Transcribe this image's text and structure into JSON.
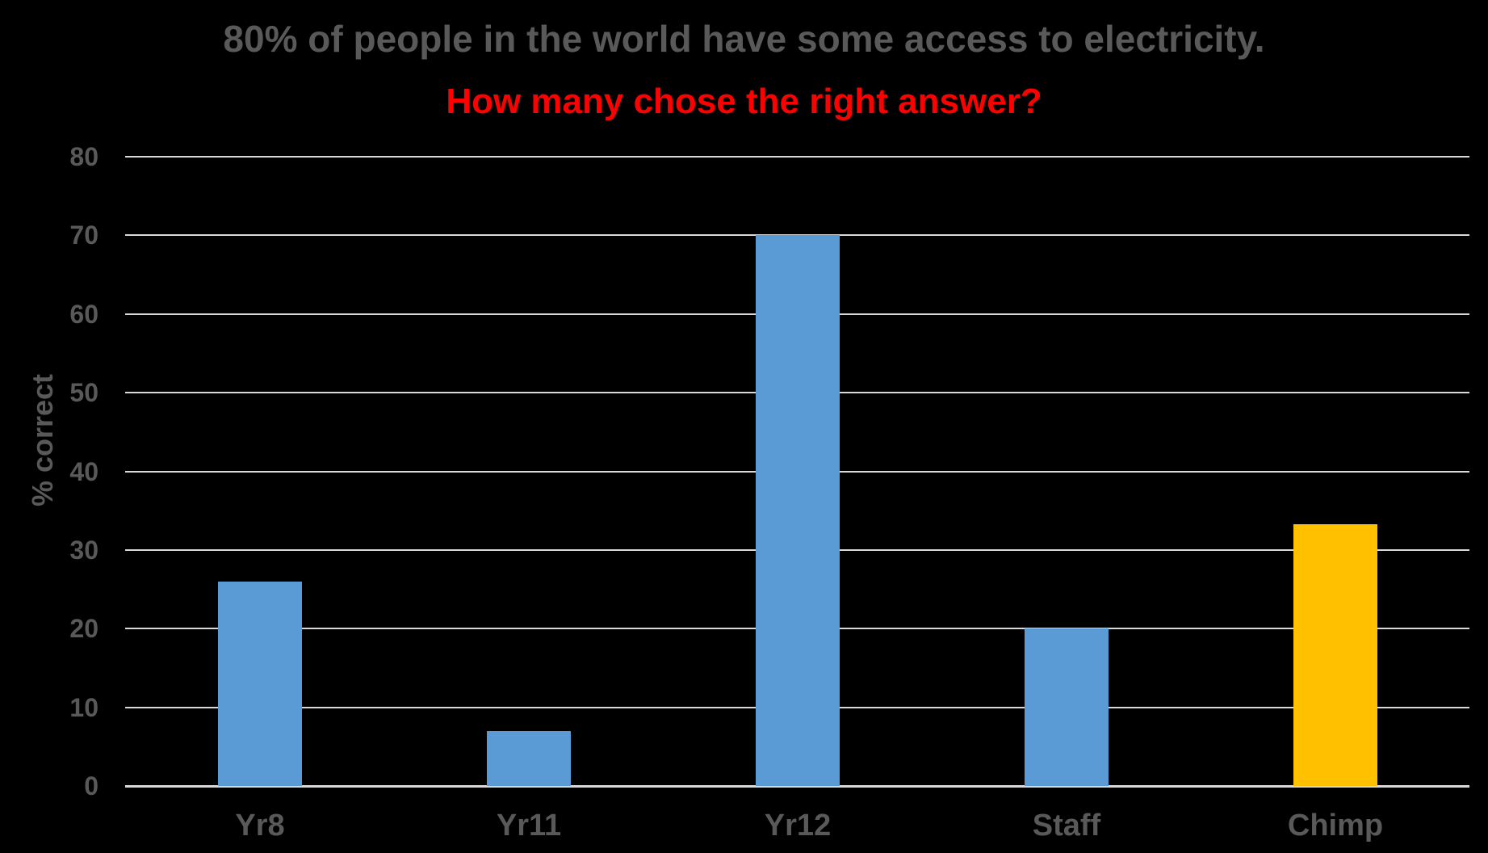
{
  "chart_data": {
    "type": "bar",
    "title": "80% of people in the world have some access to electricity.",
    "subtitle": "How many chose the right answer?",
    "title_color": "#595959",
    "subtitle_color": "#FF0000",
    "categories": [
      "Yr8",
      "Yr11",
      "Yr12",
      "Staff",
      "Chimp"
    ],
    "values": [
      26,
      7,
      70,
      20,
      33.3
    ],
    "bar_colors": [
      "#5B9BD5",
      "#5B9BD5",
      "#5B9BD5",
      "#5B9BD5",
      "#FFC000"
    ],
    "xlabel": "",
    "ylabel": "% correct",
    "ylim": [
      0,
      80
    ],
    "ytick_step": 10,
    "ytick_labels": [
      "0",
      "10",
      "20",
      "30",
      "40",
      "50",
      "60",
      "70",
      "80"
    ],
    "grid": true,
    "legend": false,
    "background_color": "#000000",
    "gridline_color": "#D9D9D9",
    "axis_line_color": "#D9D9D9",
    "text_color": "#595959"
  }
}
